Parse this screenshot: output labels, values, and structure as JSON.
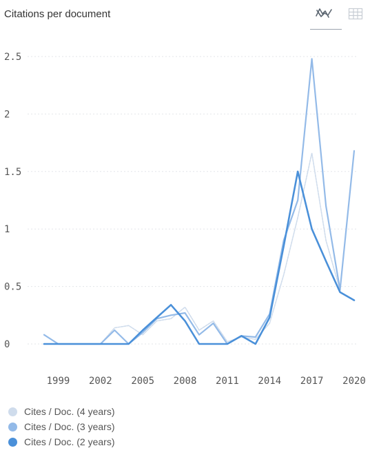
{
  "title": "Citations per document",
  "toolbar": {
    "chart_icon": "line-chart-icon",
    "table_icon": "table-icon"
  },
  "chart_data": {
    "type": "line",
    "title": "Citations per document",
    "xlabel": "",
    "ylabel": "",
    "x": [
      1998,
      1999,
      2000,
      2001,
      2002,
      2003,
      2004,
      2005,
      2006,
      2007,
      2008,
      2009,
      2010,
      2011,
      2012,
      2013,
      2014,
      2015,
      2016,
      2017,
      2018,
      2019,
      2020
    ],
    "xticks": [
      1999,
      2002,
      2005,
      2008,
      2011,
      2014,
      2017,
      2020
    ],
    "yticks": [
      0,
      0.5,
      1,
      1.5,
      2,
      2.5
    ],
    "ytick_labels": [
      "0",
      "0.5",
      "1",
      "1.5",
      "2",
      "2.5"
    ],
    "xlim": [
      1998,
      2020
    ],
    "ylim": [
      0,
      2.5
    ],
    "grid": true,
    "legend_position": "bottom-left",
    "series": [
      {
        "name": "Cites / Doc. (4 years)",
        "color": "#cfdcec",
        "values": [
          0.08,
          0.0,
          0.0,
          0.0,
          0.0,
          0.14,
          0.16,
          0.08,
          0.2,
          0.22,
          0.32,
          0.12,
          0.2,
          0.02,
          0.06,
          0.04,
          0.18,
          0.6,
          1.1,
          1.66,
          0.9,
          0.47,
          null
        ]
      },
      {
        "name": "Cites / Doc. (3 years)",
        "color": "#93bae8",
        "values": [
          0.08,
          0.0,
          0.0,
          0.0,
          0.0,
          0.12,
          0.0,
          0.1,
          0.22,
          0.25,
          0.27,
          0.08,
          0.18,
          0.0,
          0.07,
          0.06,
          0.26,
          0.9,
          1.25,
          2.48,
          1.2,
          0.47,
          1.68
        ]
      },
      {
        "name": "Cites / Doc. (2 years)",
        "color": "#4a90d9",
        "values": [
          0.0,
          0.0,
          0.0,
          0.0,
          0.0,
          0.0,
          0.0,
          0.12,
          0.23,
          0.34,
          0.2,
          0.0,
          0.0,
          0.0,
          0.07,
          0.0,
          0.23,
          0.85,
          1.5,
          1.0,
          0.72,
          0.45,
          0.38
        ]
      }
    ]
  }
}
